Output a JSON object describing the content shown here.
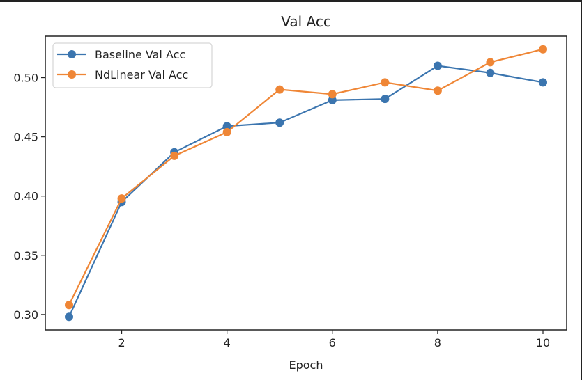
{
  "chart_data": {
    "type": "line",
    "title": "Val Acc",
    "xlabel": "Epoch",
    "ylabel": "",
    "x": [
      1,
      2,
      3,
      4,
      5,
      6,
      7,
      8,
      9,
      10
    ],
    "xlim": [
      0.55,
      10.45
    ],
    "ylim": [
      0.287,
      0.535
    ],
    "xticks": [
      2,
      4,
      6,
      8,
      10
    ],
    "xtick_labels": [
      "2",
      "4",
      "6",
      "8",
      "10"
    ],
    "yticks": [
      0.3,
      0.35,
      0.4,
      0.45,
      0.5
    ],
    "ytick_labels": [
      "0.30",
      "0.35",
      "0.40",
      "0.45",
      "0.50"
    ],
    "grid": false,
    "legend_position": "top-left",
    "series": [
      {
        "name": "Baseline Val Acc",
        "color": "#3b75af",
        "marker": "circle",
        "values": [
          0.298,
          0.395,
          0.437,
          0.459,
          0.462,
          0.481,
          0.482,
          0.51,
          0.504,
          0.496
        ]
      },
      {
        "name": "NdLinear Val Acc",
        "color": "#ef8636",
        "marker": "circle",
        "values": [
          0.308,
          0.398,
          0.434,
          0.454,
          0.49,
          0.486,
          0.496,
          0.489,
          0.513,
          0.524
        ]
      }
    ]
  }
}
